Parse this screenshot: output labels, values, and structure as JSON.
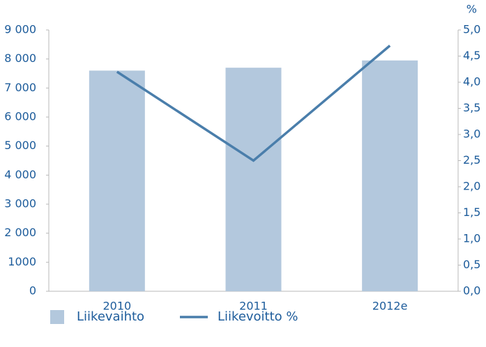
{
  "chart_data": {
    "type": "bar",
    "categories": [
      "2010",
      "2011",
      "2012e"
    ],
    "series": [
      {
        "name": "Liikevaihto",
        "type": "bar",
        "color": "#b3c8dd",
        "values": [
          7600,
          7700,
          7950
        ]
      },
      {
        "name": "Liikevoitto %",
        "type": "line",
        "axis": "y2",
        "color": "#4a7eab",
        "values": [
          4.2,
          2.5,
          4.7
        ]
      }
    ],
    "ylim": [
      0,
      9000
    ],
    "yticks": [
      0,
      1000,
      {
        "value": 2000,
        "label": "2 000"
      },
      {
        "value": 3000,
        "label": "3 000"
      },
      {
        "value": 4000,
        "label": "4 000"
      },
      {
        "value": 5000,
        "label": "5 000"
      },
      {
        "value": 6000,
        "label": "6 000"
      },
      {
        "value": 7000,
        "label": "7 000"
      },
      {
        "value": 8000,
        "label": "8 000"
      },
      {
        "value": 9000,
        "label": "9 000"
      }
    ],
    "y2_label": "%",
    "y2lim": [
      0,
      5
    ],
    "y2ticks": [
      {
        "value": 0,
        "label": "0,0"
      },
      {
        "value": 0.5,
        "label": "0,5"
      },
      {
        "value": 1,
        "label": "1,0"
      },
      {
        "value": 1.5,
        "label": "1,5"
      },
      {
        "value": 2,
        "label": "2,0"
      },
      {
        "value": 2.5,
        "label": "2,5"
      },
      {
        "value": 3,
        "label": "3,0"
      },
      {
        "value": 3.5,
        "label": "3,5"
      },
      {
        "value": 4,
        "label": "4,0"
      },
      {
        "value": 4.5,
        "label": "4,5"
      },
      {
        "value": 5,
        "label": "5,0"
      }
    ],
    "grid": false,
    "legend": "bottom"
  }
}
